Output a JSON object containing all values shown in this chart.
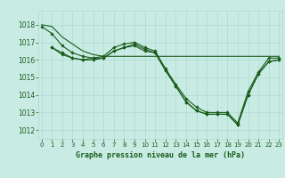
{
  "title": "Graphe pression niveau de la mer (hPa)",
  "background_color": "#c8ece4",
  "grid_color": "#b0d8ce",
  "line_color": "#1a5c1a",
  "tick_color": "#1a5c1a",
  "x_ticks": [
    0,
    1,
    2,
    3,
    4,
    5,
    6,
    7,
    8,
    9,
    10,
    11,
    12,
    13,
    14,
    15,
    16,
    17,
    18,
    19,
    20,
    21,
    22,
    23
  ],
  "y_ticks": [
    1012,
    1013,
    1014,
    1015,
    1016,
    1017,
    1018
  ],
  "ylim": [
    1011.5,
    1018.8
  ],
  "xlim": [
    -0.3,
    23.3
  ],
  "series": [
    {
      "x": [
        0,
        1,
        2,
        3,
        4,
        5,
        6,
        7,
        8,
        9,
        10,
        11,
        12,
        13,
        14,
        15,
        16,
        17,
        18,
        19,
        20,
        21,
        22,
        23
      ],
      "y": [
        1018.0,
        1017.9,
        1017.3,
        1016.9,
        1016.5,
        1016.3,
        1016.2,
        1016.2,
        1016.2,
        1016.2,
        1016.2,
        1016.2,
        1016.2,
        1016.2,
        1016.2,
        1016.2,
        1016.2,
        1016.2,
        1016.2,
        1016.2,
        1016.2,
        1016.2,
        1016.2,
        1016.2
      ],
      "marker": false
    },
    {
      "x": [
        1,
        2,
        3,
        4,
        5,
        6,
        7,
        8,
        9,
        10,
        11,
        12,
        13,
        14,
        15,
        16,
        17,
        18,
        19,
        20,
        21,
        22,
        23
      ],
      "y": [
        1016.7,
        1016.4,
        1016.1,
        1016.0,
        1016.1,
        1016.2,
        1016.7,
        1016.9,
        1017.0,
        1016.7,
        1016.5,
        1015.5,
        1014.6,
        1013.8,
        1013.3,
        1013.0,
        1013.0,
        1013.0,
        1012.4,
        1014.2,
        1015.3,
        1016.1,
        1016.1
      ],
      "marker": true
    },
    {
      "x": [
        1,
        2,
        3,
        4,
        5,
        6,
        7,
        8,
        9,
        10,
        11,
        12,
        13,
        14,
        15,
        16,
        17,
        18,
        19,
        20,
        21,
        22,
        23
      ],
      "y": [
        1016.7,
        1016.3,
        1016.1,
        1016.0,
        1016.0,
        1016.1,
        1016.5,
        1016.7,
        1016.9,
        1016.6,
        1016.4,
        1015.4,
        1014.5,
        1013.6,
        1013.1,
        1012.9,
        1012.9,
        1012.9,
        1012.3,
        1014.0,
        1015.2,
        1015.9,
        1016.0
      ],
      "marker": true
    },
    {
      "x": [
        0,
        1,
        2,
        3,
        4,
        5,
        6,
        7,
        8,
        9,
        10,
        11,
        12,
        13,
        14,
        15,
        16,
        17,
        18,
        19,
        20,
        21,
        22,
        23
      ],
      "y": [
        1017.9,
        1017.5,
        1016.8,
        1016.4,
        1016.2,
        1016.1,
        1016.1,
        1016.5,
        1016.7,
        1016.8,
        1016.5,
        1016.4,
        1015.4,
        1014.5,
        1013.6,
        1013.1,
        1012.9,
        1012.9,
        1012.9,
        1012.3,
        1014.0,
        1015.2,
        1015.9,
        1016.0
      ],
      "marker": true
    }
  ]
}
